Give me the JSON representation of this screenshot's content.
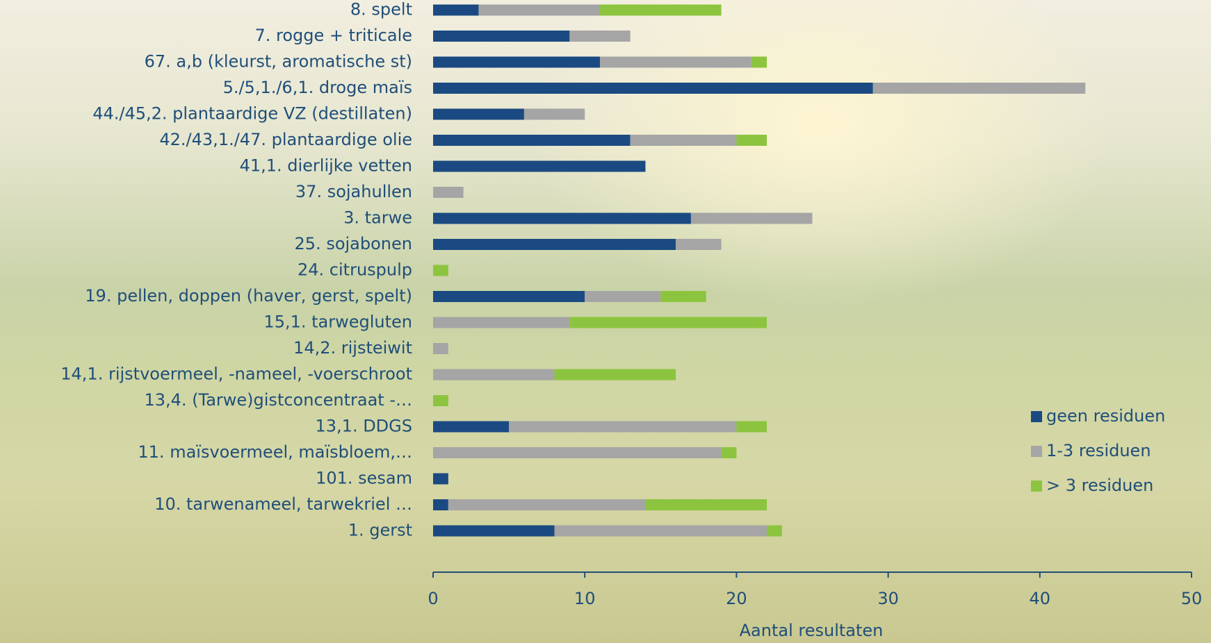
{
  "chart_data": {
    "type": "stacked-barh",
    "x_label": "Aantal resultaten",
    "categories": [
      "8. spelt",
      "7. rogge + triticale",
      "67. a,b (kleurst, aromatische st)",
      "5./5,1./6,1. droge maïs",
      "44./45,2. plantaardige VZ (destillaten)",
      "42./43,1./47. plantaardige olie",
      "41,1. dierlijke vetten",
      "37. sojahullen",
      "3. tarwe",
      "25. sojabonen",
      "24. citruspulp",
      "19. pellen, doppen (haver, gerst, spelt)",
      "15,1. tarwegluten",
      "14,2. rijsteiwit",
      "14,1. rijstvoermeel, -nameel, -voerschroot",
      "13,4. (Tarwe)gistconcentraat -…",
      "13,1. DDGS",
      "11. maïsvoermeel, maïsbloem,…",
      "101. sesam",
      "10. tarwenameel, tarwekriel …",
      "1. gerst"
    ],
    "series": [
      {
        "name": "geen residuen",
        "color": "#1b4a82",
        "values": [
          3,
          9,
          11,
          29,
          6,
          13,
          14,
          0,
          17,
          16,
          0,
          10,
          0,
          0,
          0,
          0,
          5,
          0,
          1,
          1,
          8
        ]
      },
      {
        "name": "1-3 residuen",
        "color": "#a5a5a5",
        "values": [
          8,
          4,
          10,
          14,
          4,
          7,
          0,
          2,
          8,
          3,
          0,
          5,
          9,
          1,
          8,
          0,
          15,
          19,
          0,
          13,
          14
        ]
      },
      {
        "name": "> 3 residuen",
        "color": "#8cc43f",
        "values": [
          8,
          0,
          1,
          0,
          0,
          2,
          0,
          0,
          0,
          0,
          1,
          3,
          13,
          0,
          8,
          1,
          2,
          1,
          0,
          8,
          1
        ]
      }
    ],
    "xlim": [
      0,
      50
    ],
    "xticks": [
      0,
      10,
      20,
      30,
      40,
      50
    ]
  }
}
